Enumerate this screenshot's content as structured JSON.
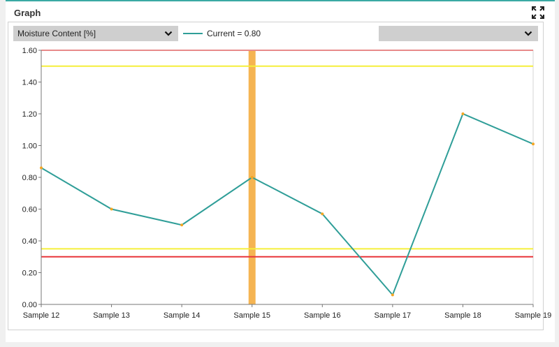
{
  "panel": {
    "title": "Graph",
    "expand_icon": "expand-icon"
  },
  "controls": {
    "parameter_select": {
      "value": "Moisture Content [%]"
    },
    "secondary_select": {
      "value": ""
    }
  },
  "legend": {
    "series_label": "Current = 0.80"
  },
  "chart_data": {
    "type": "line",
    "categories": [
      "Sample 12",
      "Sample 13",
      "Sample 14",
      "Sample 15",
      "Sample 16",
      "Sample 17",
      "Sample 18",
      "Sample 19"
    ],
    "series": [
      {
        "name": "Current",
        "values": [
          0.86,
          0.6,
          0.5,
          0.8,
          0.57,
          0.06,
          1.2,
          1.01
        ],
        "color": "#2f9e98",
        "marker_color": "#f5a623"
      }
    ],
    "ylim": [
      0,
      1.6
    ],
    "y_ticks": [
      "0.00",
      "0.20",
      "0.40",
      "0.60",
      "0.80",
      "1.00",
      "1.20",
      "1.40",
      "1.60"
    ],
    "y_tick_values": [
      0,
      0.2,
      0.4,
      0.6,
      0.8,
      1.0,
      1.2,
      1.4,
      1.6
    ],
    "reference_lines": [
      {
        "value": 1.6,
        "color": "#e88a8a"
      },
      {
        "value": 1.5,
        "color": "#f5ef3a"
      },
      {
        "value": 0.35,
        "color": "#f5ef3a"
      },
      {
        "value": 0.3,
        "color": "#e8353a"
      }
    ],
    "highlight_category": "Sample 15",
    "highlight_color": "#f5b452",
    "grid": false,
    "xlabel": "",
    "ylabel": ""
  }
}
